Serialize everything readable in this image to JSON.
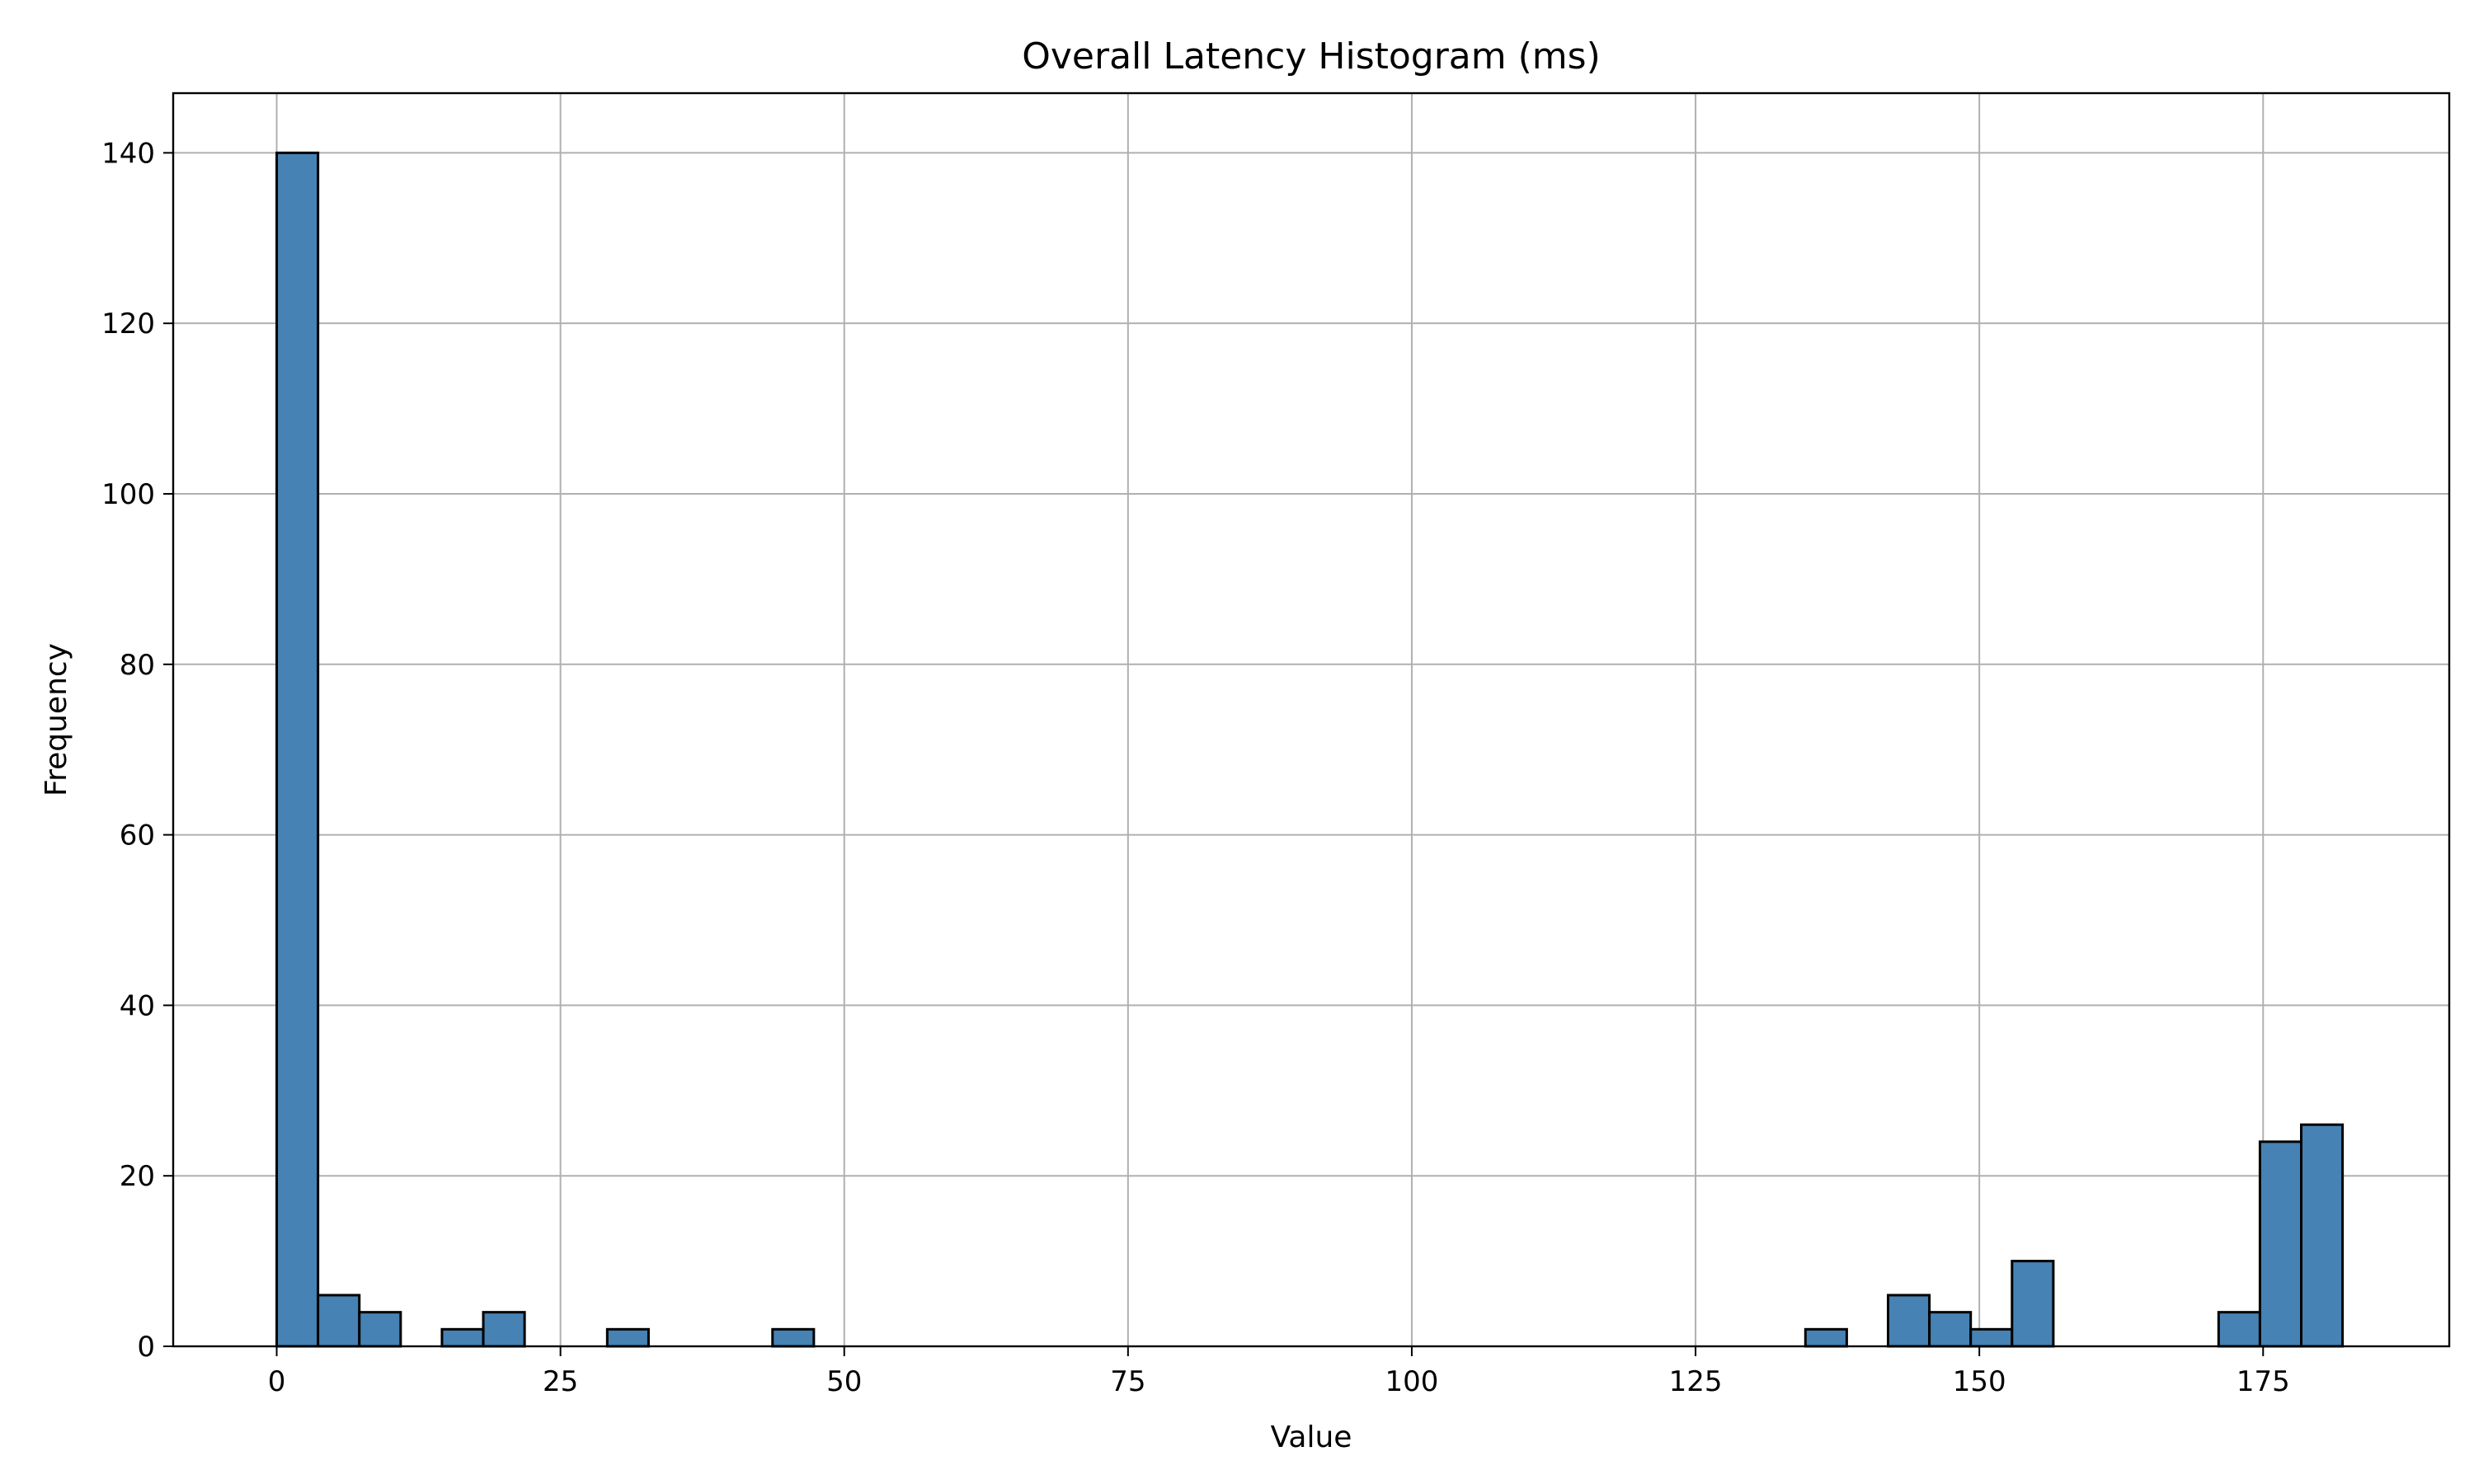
{
  "chart_data": {
    "type": "bar",
    "title": "Overall Latency Histogram (ms)",
    "xlabel": "Value",
    "ylabel": "Frequency",
    "xlim": [
      -9.12,
      191.4
    ],
    "ylim": [
      0,
      147
    ],
    "xticks": [
      0,
      25,
      50,
      75,
      100,
      125,
      150,
      175
    ],
    "yticks": [
      0,
      20,
      40,
      60,
      80,
      100,
      120,
      140
    ],
    "grid": true,
    "bin_width": 3.64,
    "bins": [
      {
        "x0": 0.0,
        "x1": 3.64,
        "count": 140
      },
      {
        "x0": 3.64,
        "x1": 7.28,
        "count": 6
      },
      {
        "x0": 7.28,
        "x1": 10.92,
        "count": 4
      },
      {
        "x0": 10.92,
        "x1": 14.56,
        "count": 0
      },
      {
        "x0": 14.56,
        "x1": 18.2,
        "count": 2
      },
      {
        "x0": 18.2,
        "x1": 21.84,
        "count": 4
      },
      {
        "x0": 21.84,
        "x1": 25.48,
        "count": 0
      },
      {
        "x0": 25.48,
        "x1": 29.12,
        "count": 0
      },
      {
        "x0": 29.12,
        "x1": 32.76,
        "count": 2
      },
      {
        "x0": 32.76,
        "x1": 36.4,
        "count": 0
      },
      {
        "x0": 36.4,
        "x1": 40.04,
        "count": 0
      },
      {
        "x0": 40.04,
        "x1": 43.68,
        "count": 0
      },
      {
        "x0": 43.68,
        "x1": 47.32,
        "count": 2
      },
      {
        "x0": 47.32,
        "x1": 134.68,
        "count": 0
      },
      {
        "x0": 134.68,
        "x1": 138.32,
        "count": 2
      },
      {
        "x0": 138.32,
        "x1": 141.96,
        "count": 0
      },
      {
        "x0": 141.96,
        "x1": 145.6,
        "count": 6
      },
      {
        "x0": 145.6,
        "x1": 149.24,
        "count": 4
      },
      {
        "x0": 149.24,
        "x1": 152.88,
        "count": 2
      },
      {
        "x0": 152.88,
        "x1": 156.52,
        "count": 10
      },
      {
        "x0": 156.52,
        "x1": 171.08,
        "count": 0
      },
      {
        "x0": 171.08,
        "x1": 174.72,
        "count": 4
      },
      {
        "x0": 174.72,
        "x1": 178.36,
        "count": 24
      },
      {
        "x0": 178.36,
        "x1": 182.0,
        "count": 26
      }
    ],
    "colors": {
      "bar_fill": "#4682b4",
      "bar_edge": "#000000",
      "grid": "#b0b0b0",
      "axes": "#000000"
    }
  }
}
